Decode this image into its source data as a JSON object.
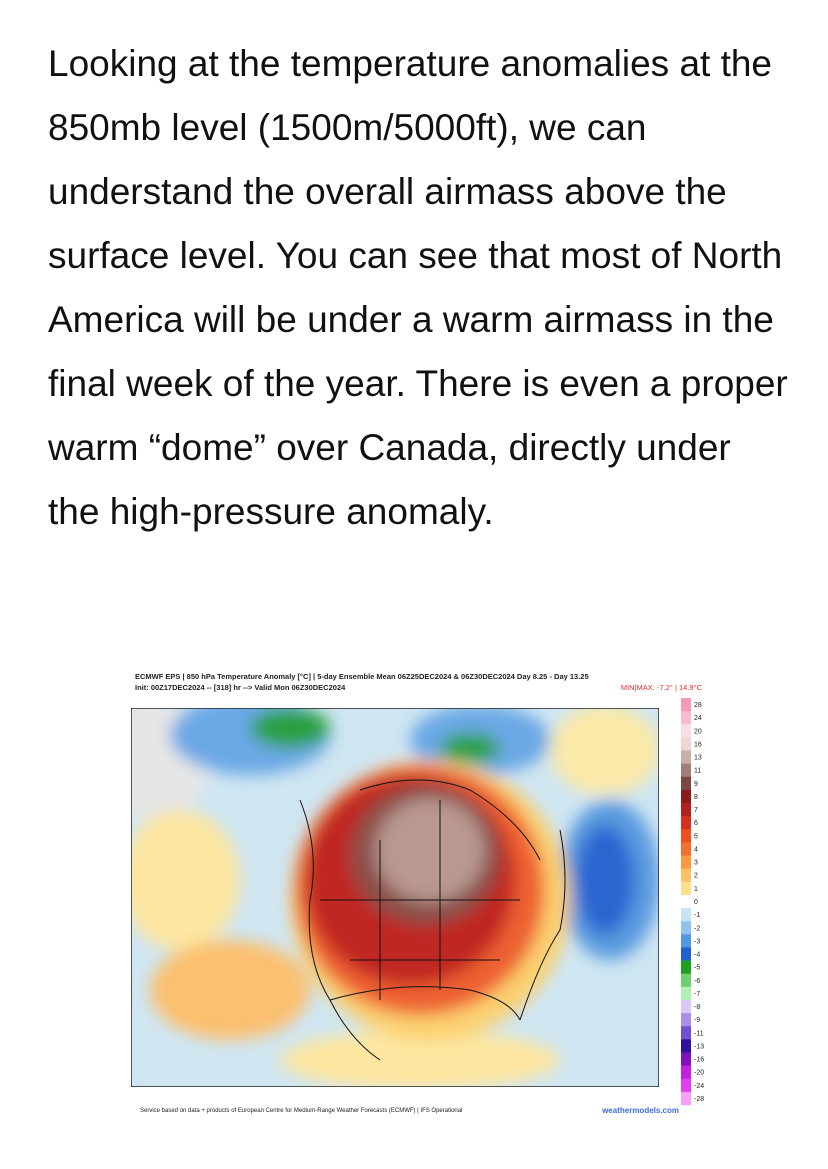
{
  "article": {
    "paragraph": "Looking at the temperature anomalies at the 850mb level (1500m/5000ft), we can understand the overall airmass above the surface level. You can see that most of North America will be under a warm airmass in the final week of the year. There is even a proper warm “dome” over Canada, directly under the high-pressure anomaly."
  },
  "figure": {
    "header": {
      "line1": "ECMWF EPS | 850 hPa Temperature Anomaly [°C] | 5-day Ensemble Mean 06Z25DEC2024 & 06Z30DEC2024   Day 8.25 - Day 13.25",
      "line2": "Init: 00Z17DEC2024 -- [318] hr --> Valid Mon 06Z30DEC2024",
      "minmax": "MIN|MAX: -7.2° | 14.9°C"
    },
    "colorbar": {
      "labels": [
        "28",
        "24",
        "20",
        "16",
        "13",
        "11",
        "9",
        "8",
        "7",
        "6",
        "5",
        "4",
        "3",
        "2",
        "1",
        "0",
        "-1",
        "-2",
        "-3",
        "-4",
        "-5",
        "-6",
        "-7",
        "-8",
        "-9",
        "-11",
        "-13",
        "-16",
        "-20",
        "-24",
        "-28"
      ]
    },
    "footer": {
      "credit": "Service based on data + products of European Centre for Medium-Range Weather Forecasts (ECMWF) | IFS Operational",
      "source": "weathermodels.com"
    }
  }
}
